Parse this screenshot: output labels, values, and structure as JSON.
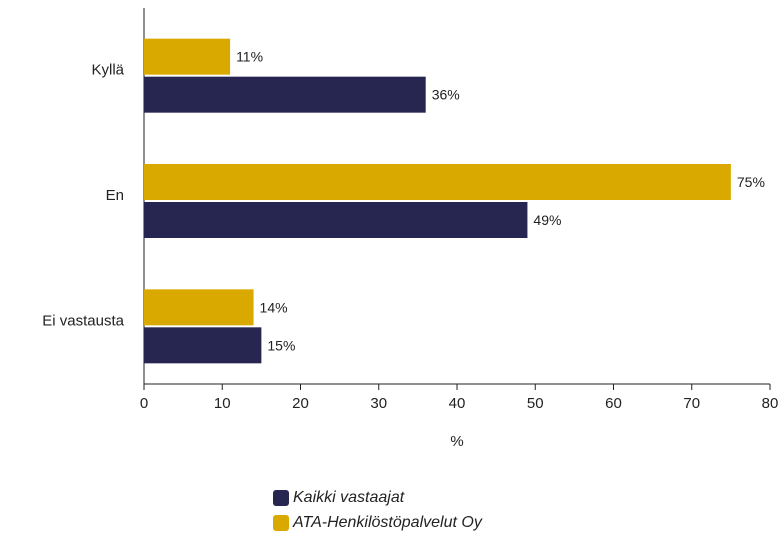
{
  "chart_data": {
    "type": "bar",
    "orientation": "horizontal",
    "categories": [
      "Kyllä",
      "En",
      "Ei vastausta"
    ],
    "series": [
      {
        "name": "ATA-Henkilöstöpalvelut Oy",
        "values": [
          11,
          75,
          14
        ],
        "labels": [
          "11%",
          "75%",
          "14%"
        ],
        "color": "#d9a900"
      },
      {
        "name": "Kaikki vastaajat",
        "values": [
          36,
          49,
          15
        ],
        "labels": [
          "36%",
          "49%",
          "15%"
        ],
        "color": "#262650"
      }
    ],
    "xlabel": "%",
    "ylabel": "",
    "xlim": [
      0,
      80
    ],
    "xticks": [
      0,
      10,
      20,
      30,
      40,
      50,
      60,
      70,
      80
    ],
    "grid": false,
    "legend_placement": "bottom",
    "legend": [
      {
        "name": "Kaikki vastaajat",
        "color": "#262650"
      },
      {
        "name": "ATA-Henkilöstöpalvelut Oy",
        "color": "#d9a900"
      }
    ]
  }
}
